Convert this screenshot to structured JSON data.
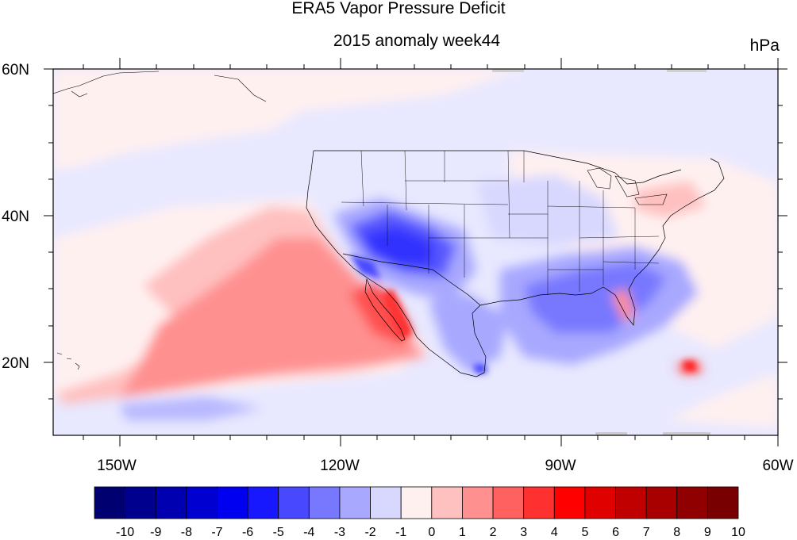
{
  "figure": {
    "title": "ERA5 Vapor Pressure Deficit",
    "subtitle": "2015 anomaly week44",
    "units": "hPa"
  },
  "map": {
    "lon_range": [
      -160,
      -60
    ],
    "lat_range": [
      10,
      60
    ],
    "lon_tick_labels": [
      "150W",
      "120W",
      "90W",
      "60W"
    ],
    "lat_tick_labels": [
      "20N",
      "40N",
      "60N"
    ],
    "projection": "cylindrical-equidistant",
    "features": [
      "coastlines",
      "us-state-boundaries",
      "country-boundaries"
    ]
  },
  "colorbar": {
    "labels": [
      "-10",
      "-9",
      "-8",
      "-7",
      "-6",
      "-5",
      "-4",
      "-3",
      "-2",
      "-1",
      "0",
      "1",
      "2",
      "3",
      "4",
      "5",
      "6",
      "7",
      "8",
      "9",
      "10"
    ],
    "colors": [
      "#000070",
      "#00008f",
      "#0000b0",
      "#0000d0",
      "#0000f0",
      "#1818ff",
      "#4848ff",
      "#7878ff",
      "#a8a8ff",
      "#d8d8ff",
      "#fff0f0",
      "#ffc0c0",
      "#ff9090",
      "#ff6060",
      "#ff3030",
      "#ff0000",
      "#e00000",
      "#c00000",
      "#a80000",
      "#900000",
      "#780000"
    ]
  }
}
